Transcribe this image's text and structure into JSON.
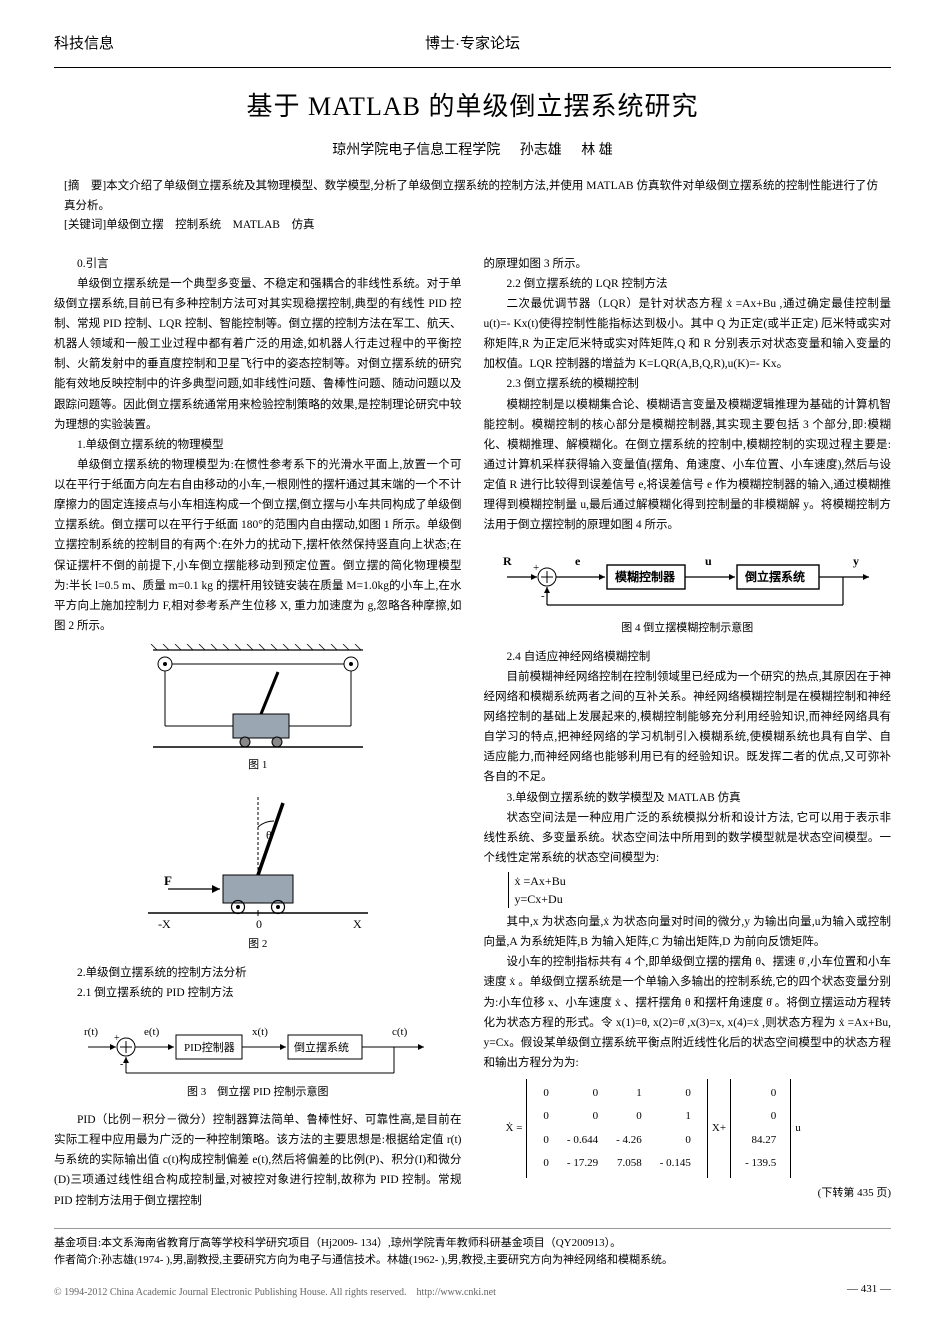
{
  "header": {
    "left": "科技信息",
    "center": "博士·专家论坛"
  },
  "title": "基于 MATLAB 的单级倒立摆系统研究",
  "authors": {
    "affiliation": "琼州学院电子信息工程学院",
    "a1": "孙志雄",
    "a2": "林 雄"
  },
  "abstract": {
    "label": "[摘　要]",
    "text": "本文介绍了单级倒立摆系统及其物理模型、数学模型,分析了单级倒立摆系统的控制方法,并使用 MATLAB 仿真软件对单级倒立摆系统的控制性能进行了仿真分析。",
    "kw_label": "[关键词]",
    "kw_text": "单级倒立摆　控制系统　MATLAB　仿真"
  },
  "left_col": {
    "s0_head": "0.引言",
    "s0_p1": "单级倒立摆系统是一个典型多变量、不稳定和强耦合的非线性系统。对于单级倒立摆系统,目前已有多种控制方法可对其实现稳摆控制,典型的有线性 PID 控制、常规 PID 控制、LQR 控制、智能控制等。倒立摆的控制方法在军工、航天、机器人领域和一般工业过程中都有着广泛的用途,如机器人行走过程中的平衡控制、火箭发射中的垂直度控制和卫星飞行中的姿态控制等。对倒立摆系统的研究能有效地反映控制中的许多典型问题,如非线性问题、鲁棒性问题、随动问题以及跟踪问题等。因此倒立摆系统通常用来检验控制策略的效果,是控制理论研究中较为理想的实验装置。",
    "s1_head": "1.单级倒立摆系统的物理模型",
    "s1_p1": "单级倒立摆系统的物理模型为:在惯性参考系下的光滑水平面上,放置一个可以在平行于纸面方向左右自由移动的小车,一根刚性的摆杆通过其末端的一个不计摩擦力的固定连接点与小车相连构成一个倒立摆,倒立摆与小车共同构成了单级倒立摆系统。倒立摆可以在平行于纸面 180°的范围内自由摆动,如图 1 所示。单级倒立摆控制系统的控制目的有两个:在外力的扰动下,摆杆依然保持竖直向上状态;在保证摆杆不倒的前提下,小车倒立摆能移动到预定位置。倒立摆的简化物理模型为:半长 l=0.5 m、质量 m=0.1 kg 的摆杆用铰链安装在质量 M=1.0kg的小车上,在水平方向上施加控制力 F,相对参考系产生位移 X, 重力加速度为 g,忽略各种摩擦,如图 2 所示。",
    "fig1_caption": "图 1",
    "fig2_caption": "图 2",
    "s2_head": "2.单级倒立摆系统的控制方法分析",
    "s21_head": "2.1 倒立摆系统的 PID 控制方法",
    "fig3": {
      "caption": "图 3　倒立摆 PID 控制示意图",
      "r_label": "r(t)",
      "e_label": "e(t)",
      "pid_label": "PID控制器",
      "x_label": "x(t)",
      "sys_label": "倒立摆系统",
      "c_label": "c(t)"
    },
    "s21_p1": "PID（比例－积分－微分）控制器算法简单、鲁棒性好、可靠性高,是目前在实际工程中应用最为广泛的一种控制策略。该方法的主要思想是:根据给定值 r(t) 与系统的实际输出值 c(t)构成控制偏差 e(t),然后将偏差的比例(P)、积分(I)和微分(D)三项通过线性组合构成控制量,对被控对象进行控制,故称为 PID 控制。常规 PID 控制方法用于倒立摆控制"
  },
  "right_col": {
    "p_cont": "的原理如图 3 所示。",
    "s22_head": "2.2 倒立摆系统的 LQR 控制方法",
    "s22_p1": "二次最优调节器（LQR）是针对状态方程 ẋ =Ax+Bu ,通过确定最佳控制量 u(t)=- Kx(t)使得控制性能指标达到极小。其中 Q 为正定(或半正定) 厄米特或实对称矩阵,R 为正定厄米特或实对阵矩阵,Q 和 R 分别表示对状态变量和输入变量的加权值。LQR 控制器的增益为 K=LQR(A,B,Q,R),u(K)=- Kx。",
    "s23_head": "2.3 倒立摆系统的模糊控制",
    "s23_p1": "模糊控制是以模糊集合论、模糊语言变量及模糊逻辑推理为基础的计算机智能控制。模糊控制的核心部分是模糊控制器,其实现主要包括 3 个部分,即:模糊化、模糊推理、解模糊化。在倒立摆系统的控制中,模糊控制的实现过程主要是:通过计算机采样获得输入变量值(摆角、角速度、小车位置、小车速度),然后与设定值 R 进行比较得到误差信号 e,将误差信号 e 作为模糊控制器的输入,通过模糊推理得到模糊控制量 u,最后通过解模糊化得到控制量的非模糊解 y。将模糊控制方法用于倒立摆控制的原理如图 4 所示。",
    "fig4": {
      "caption": "图 4 倒立摆模糊控制示意图",
      "r_label": "R",
      "e_label": "e",
      "fuzzy_label": "模糊控制器",
      "u_label": "u",
      "sys_label": "倒立摆系统",
      "y_label": "y"
    },
    "s24_head": "2.4 自适应神经网络模糊控制",
    "s24_p1": "目前模糊神经网络控制在控制领域里已经成为一个研究的热点,其原因在于神经网络和模糊系统两者之间的互补关系。神经网络模糊控制是在模糊控制和神经网络控制的基础上发展起来的,模糊控制能够充分利用经验知识,而神经网络具有自学习的特点,把神经网络的学习机制引入模糊系统,使模糊系统也具有自学、自适应能力,而神经网络也能够利用已有的经验知识。既发挥二者的优点,又可弥补各自的不足。",
    "s3_head": "3.单级倒立摆系统的数学模型及 MATLAB 仿真",
    "s3_p1": "状态空间法是一种应用广泛的系统模拟分析和设计方法, 它可以用于表示非线性系统、多变量系统。状态空间法中所用到的数学模型就是状态空间模型。一个线性定常系统的状态空间模型为:",
    "eq1_l1": "ẋ =Ax+Bu",
    "eq1_l2": "y=Cx+Du",
    "s3_p2": "其中,x 为状态向量,ẋ 为状态向量对时间的微分,y 为输出向量,u为输入或控制向量,A 为系统矩阵,B 为输入矩阵,C 为输出矩阵,D 为前向反馈矩阵。",
    "s3_p3": "设小车的控制指标共有 4 个,即单级倒立摆的摆角 θ、摆速 θ̇ ,小车位置和小车速度 ẋ 。单级倒立摆系统是一个单输入多输出的控制系统,它的四个状态变量分别为:小车位移 x、小车速度 ẋ 、摆杆摆角 θ 和摆杆角速度 θ̇ 。将倒立摆运动方程转化为状态方程的形式。令 x(1)=θ, x(2)=θ̇ ,x(3)=x, x(4)=ẋ ,则状态方程为 ẋ =Ax+Bu, y=Cx。假设某单级倒立摆系统平衡点附近线性化后的状态空间模型中的状态方程和输出方程分为为:",
    "matrix": {
      "prefix": "Ẋ =",
      "A": [
        [
          "0",
          "0",
          "1",
          "0"
        ],
        [
          "0",
          "0",
          "0",
          "1"
        ],
        [
          "0",
          "- 0.644",
          "- 4.26",
          "0"
        ],
        [
          "0",
          "- 17.29",
          "7.058",
          "- 0.145"
        ]
      ],
      "mid": "X+",
      "B": [
        "0",
        "0",
        "84.27",
        "- 139.5"
      ],
      "suffix": "u"
    },
    "continue": "(下转第 435 页)"
  },
  "footer": {
    "fund": "基金项目:本文系海南省教育厅高等学校科学研究项目（Hj2009- 134）,琼州学院青年教师科研基金项目（QY200913）。",
    "bio": "作者简介:孙志雄(1974- ),男,副教授,主要研究方向为电子与通信技术。林雄(1962- ),男,教授,主要研究方向为神经网络和模糊系统。"
  },
  "page_footer": {
    "copyright": "© 1994-2012 China Academic Journal Electronic Publishing House. All rights reserved.　http://www.cnki.net",
    "page": "— 431 —"
  },
  "style": {
    "fig_stroke": "#000000",
    "cart_fill": "#9aa6b2",
    "wheel_fill": "#888888",
    "hatch_color": "#000000"
  }
}
